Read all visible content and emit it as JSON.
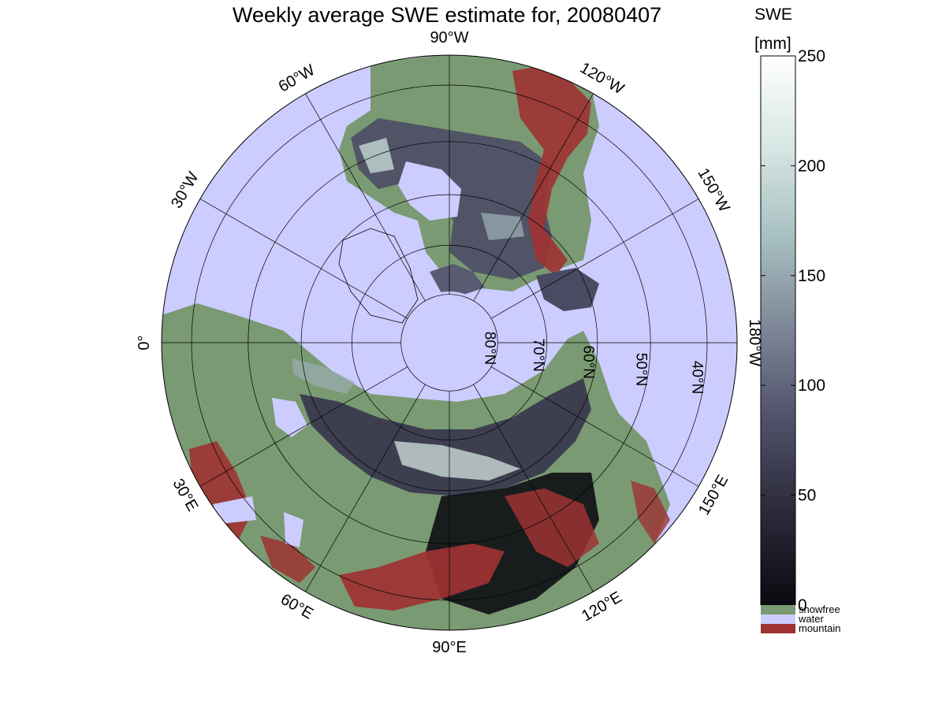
{
  "title": "Weekly average SWE estimate for, 20080407",
  "colorbar": {
    "label_line1": "SWE",
    "label_line2": "[mm]",
    "range": [
      0,
      250
    ],
    "ticks": [
      "0",
      "50",
      "100",
      "150",
      "200",
      "250"
    ],
    "ramp": [
      "#0a0a10",
      "#2a2a3a",
      "#4f4f68",
      "#7c8596",
      "#a7bfc0",
      "#d6e6e3",
      "#ffffff"
    ]
  },
  "legend": [
    {
      "label": "snowfree",
      "color": "#799a72"
    },
    {
      "label": "water",
      "color": "#ccccff"
    },
    {
      "label": "mountain",
      "color": "#9e3232"
    }
  ],
  "map": {
    "projection": "polar stereographic (north)",
    "colors": {
      "water": "#ccccff",
      "land": "#799a72",
      "mountain": "#9e3232"
    },
    "longitude_labels": [
      {
        "text": "90°W",
        "deg": 90,
        "dir": "W"
      },
      {
        "text": "120°W",
        "deg": 120,
        "dir": "W"
      },
      {
        "text": "150°W",
        "deg": 150,
        "dir": "W"
      },
      {
        "text": "180°W",
        "deg": 180,
        "dir": "W"
      },
      {
        "text": "150°E",
        "deg": 150,
        "dir": "E"
      },
      {
        "text": "120°E",
        "deg": 120,
        "dir": "E"
      },
      {
        "text": "90°E",
        "deg": 90,
        "dir": "E"
      },
      {
        "text": "60°E",
        "deg": 60,
        "dir": "E"
      },
      {
        "text": "30°E",
        "deg": 30,
        "dir": "E"
      },
      {
        "text": "0°",
        "deg": 0,
        "dir": ""
      },
      {
        "text": "30°W",
        "deg": 30,
        "dir": "W"
      },
      {
        "text": "60°W",
        "deg": 60,
        "dir": "W"
      }
    ],
    "latitude_labels": [
      {
        "text": "80°N",
        "deg": 80
      },
      {
        "text": "70°N",
        "deg": 70
      },
      {
        "text": "60°N",
        "deg": 60
      },
      {
        "text": "50°N",
        "deg": 50
      },
      {
        "text": "40°N",
        "deg": 40
      }
    ]
  }
}
